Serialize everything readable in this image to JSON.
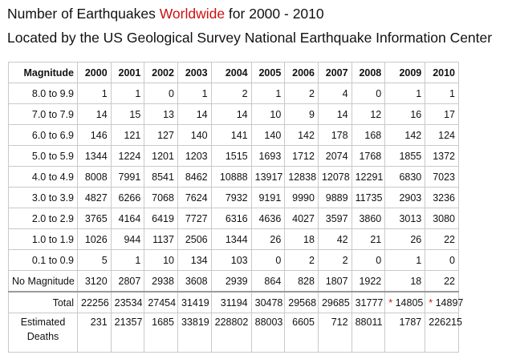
{
  "title": {
    "prefix": "Number of Earthquakes ",
    "accent": "Worldwide",
    "suffix": " for 2000 - 2010",
    "accent_color": "#cc1111"
  },
  "subtitle": "Located by the US Geological Survey National Earthquake Information Center",
  "table": {
    "header_label": "Magnitude",
    "years": [
      "2000",
      "2001",
      "2002",
      "2003",
      "2004",
      "2005",
      "2006",
      "2007",
      "2008",
      "2009",
      "2010"
    ],
    "rows": [
      {
        "label": "8.0 to 9.9",
        "values": [
          "1",
          "1",
          "0",
          "1",
          "2",
          "1",
          "2",
          "4",
          "0",
          "1",
          "1"
        ]
      },
      {
        "label": "7.0 to 7.9",
        "values": [
          "14",
          "15",
          "13",
          "14",
          "14",
          "10",
          "9",
          "14",
          "12",
          "16",
          "17"
        ]
      },
      {
        "label": "6.0 to 6.9",
        "values": [
          "146",
          "121",
          "127",
          "140",
          "141",
          "140",
          "142",
          "178",
          "168",
          "142",
          "124"
        ]
      },
      {
        "label": "5.0 to 5.9",
        "values": [
          "1344",
          "1224",
          "1201",
          "1203",
          "1515",
          "1693",
          "1712",
          "2074",
          "1768",
          "1855",
          "1372"
        ]
      },
      {
        "label": "4.0 to 4.9",
        "values": [
          "8008",
          "7991",
          "8541",
          "8462",
          "10888",
          "13917",
          "12838",
          "12078",
          "12291",
          "6830",
          "7023"
        ]
      },
      {
        "label": "3.0 to 3.9",
        "values": [
          "4827",
          "6266",
          "7068",
          "7624",
          "7932",
          "9191",
          "9990",
          "9889",
          "11735",
          "2903",
          "3236"
        ]
      },
      {
        "label": "2.0 to 2.9",
        "values": [
          "3765",
          "4164",
          "6419",
          "7727",
          "6316",
          "4636",
          "4027",
          "3597",
          "3860",
          "3013",
          "3080"
        ]
      },
      {
        "label": "1.0 to 1.9",
        "values": [
          "1026",
          "944",
          "1137",
          "2506",
          "1344",
          "26",
          "18",
          "42",
          "21",
          "26",
          "22"
        ]
      },
      {
        "label": "0.1 to 0.9",
        "values": [
          "5",
          "1",
          "10",
          "134",
          "103",
          "0",
          "2",
          "2",
          "0",
          "1",
          "0"
        ]
      },
      {
        "label": "No Magnitude",
        "values": [
          "3120",
          "2807",
          "2938",
          "3608",
          "2939",
          "864",
          "828",
          "1807",
          "1922",
          "18",
          "22"
        ]
      }
    ],
    "total": {
      "label": "Total",
      "values": [
        "22256",
        "23534",
        "27454",
        "31419",
        "31194",
        "30478",
        "29568",
        "29685",
        "31777",
        "14805",
        "14897"
      ],
      "star_mark": "*"
    },
    "deaths": {
      "label_line1": "Estimated",
      "label_line2": "Deaths",
      "values": [
        "231",
        "21357",
        "1685",
        "33819",
        "228802",
        "88003",
        "6605",
        "712",
        "88011",
        "1787",
        "226215"
      ]
    }
  }
}
